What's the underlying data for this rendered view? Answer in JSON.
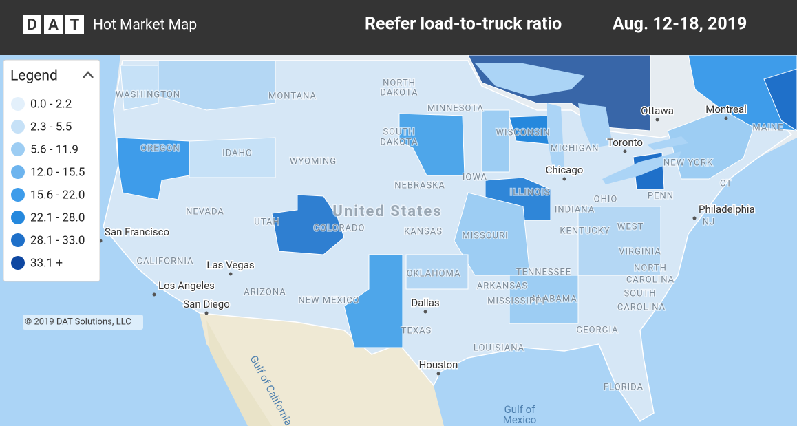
{
  "header": {
    "logo_letters": [
      "D",
      "A",
      "T"
    ],
    "product": "Hot Market Map",
    "metric": "Reefer load-to-truck ratio",
    "period": "Aug. 12-18, 2019"
  },
  "legend": {
    "title": "Legend",
    "items": [
      {
        "label": "0.0 - 2.2",
        "color": "#e3f0fb"
      },
      {
        "label": "2.3 - 5.5",
        "color": "#c6e1f7"
      },
      {
        "label": "5.6 - 11.9",
        "color": "#9dcdf3"
      },
      {
        "label": "12.0 - 15.5",
        "color": "#6db4ee"
      },
      {
        "label": "15.6 - 22.0",
        "color": "#3e9cea"
      },
      {
        "label": "22.1 - 28.0",
        "color": "#2588dd"
      },
      {
        "label": "28.1 - 33.0",
        "color": "#1f70c9"
      },
      {
        "label": "33.1 +",
        "color": "#0e47a1"
      }
    ]
  },
  "copyright": "© 2019 DAT Solutions, LLC",
  "map": {
    "country_labels": [
      "United States"
    ],
    "state_labels": [
      "WASHINGTON",
      "MONTANA",
      "NORTH",
      "DAKOTA",
      "MINNESOTA",
      "SOUTH",
      "DAKOTA",
      "WISCONSIN",
      "MICHIGAN",
      "OREGON",
      "IDAHO",
      "WYOMING",
      "NEBRASKA",
      "IOWA",
      "NEVADA",
      "UTAH",
      "COLORADO",
      "KANSAS",
      "MISSOURI",
      "ILLINOIS",
      "INDIANA",
      "OHIO",
      "PENN",
      "NEW YORK",
      "NJ",
      "CALIFORNIA",
      "ARIZONA",
      "NEW MEXICO",
      "OKLAHOMA",
      "ARKANSAS",
      "TENNESSEE",
      "KENTUCKY",
      "WEST",
      "VIRGINIA",
      "NORTH",
      "CAROLINA",
      "SOUTH",
      "CAROLINA",
      "GEORGIA",
      "ALABAMA",
      "MISSISSIPPI",
      "LOUISIANA",
      "TEXAS",
      "FLORIDA",
      "MAINE",
      "CT"
    ],
    "city_labels": [
      "Ottawa",
      "Montreal",
      "Toronto",
      "Chicago",
      "Philadelphia",
      "San Francisco",
      "Las Vegas",
      "Los Angeles",
      "San Diego",
      "Dallas",
      "Houston"
    ],
    "water_labels": [
      "Gulf of",
      "Mexico",
      "Gulf of California"
    ]
  }
}
